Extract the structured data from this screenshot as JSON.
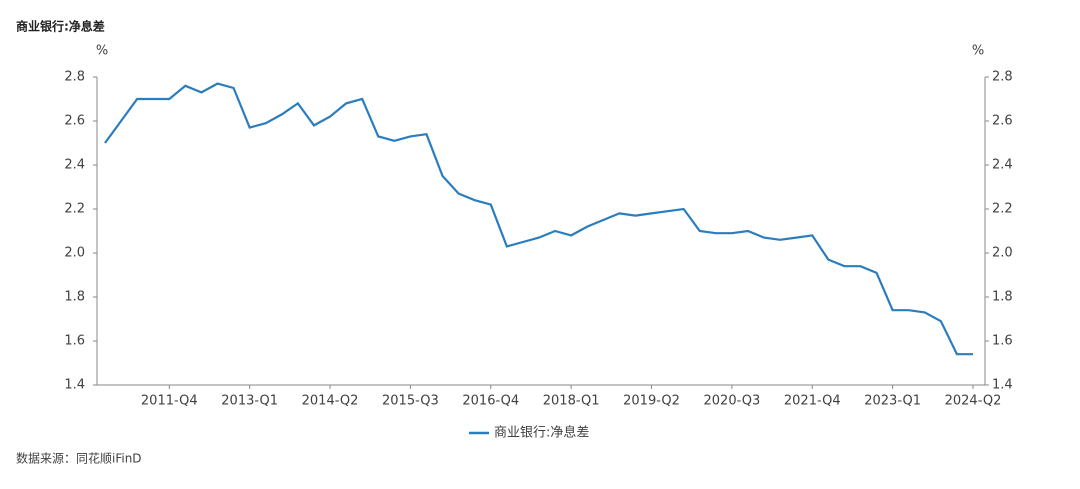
{
  "chart_data": {
    "type": "line",
    "title": "商业银行:净息差",
    "y_label": "%",
    "y2_label": "%",
    "source": "数据来源：同花顺iFinD",
    "categories": [
      null,
      null,
      null,
      null,
      "2011-Q4",
      null,
      null,
      null,
      null,
      "2013-Q1",
      null,
      null,
      null,
      null,
      "2014-Q2",
      null,
      null,
      null,
      null,
      "2015-Q3",
      null,
      null,
      null,
      null,
      "2016-Q4",
      null,
      null,
      null,
      null,
      "2018-Q1",
      null,
      null,
      null,
      null,
      "2019-Q2",
      null,
      null,
      null,
      null,
      "2020-Q3",
      null,
      null,
      null,
      null,
      "2021-Q4",
      null,
      null,
      null,
      null,
      "2023-Q1",
      null,
      null,
      null,
      null,
      "2024-Q2"
    ],
    "series": [
      {
        "name": "商业银行:净息差",
        "color": "#2a7dbf",
        "values": [
          2.5,
          2.6,
          2.7,
          2.7,
          2.7,
          2.76,
          2.73,
          2.77,
          2.75,
          2.57,
          2.59,
          2.63,
          2.68,
          2.58,
          2.62,
          2.68,
          2.7,
          2.53,
          2.51,
          2.53,
          2.54,
          2.35,
          2.27,
          2.24,
          2.22,
          2.03,
          2.05,
          2.07,
          2.1,
          2.08,
          2.12,
          2.15,
          2.18,
          2.17,
          2.18,
          2.19,
          2.2,
          2.1,
          2.09,
          2.09,
          2.1,
          2.07,
          2.06,
          2.07,
          2.08,
          1.97,
          1.94,
          1.94,
          1.91,
          1.74,
          1.74,
          1.73,
          1.69,
          1.54,
          1.54
        ]
      }
    ],
    "ylim": [
      1.4,
      2.8
    ],
    "yticks": [
      1.4,
      1.6,
      1.8,
      {
        "value": 2,
        "label": "2.0"
      },
      2.2,
      2.4,
      2.6,
      2.8
    ],
    "y2lim": [
      1.4,
      2.8
    ],
    "y2ticks": [
      1.4,
      1.6,
      1.8,
      {
        "value": 2,
        "label": "2.0"
      },
      2.2,
      2.4,
      2.6,
      2.8
    ],
    "legend": "bottom"
  }
}
